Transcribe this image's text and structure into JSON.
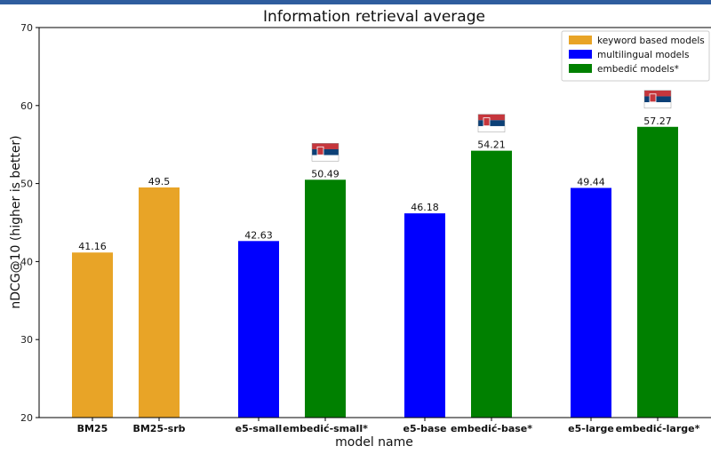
{
  "chart_data": {
    "type": "bar",
    "title": "Information retrieval average",
    "xlabel": "model name",
    "ylabel": "nDCG@10 (higher is better)",
    "ylim": [
      20,
      70
    ],
    "yticks": [
      20,
      30,
      40,
      50,
      60,
      70
    ],
    "grid": false,
    "legend_position": "top-right",
    "groups": [
      {
        "name": "keyword based models",
        "color": "#e8a427"
      },
      {
        "name": "multilingual models",
        "color": "#0000ff"
      },
      {
        "name": "embedić models*",
        "color": "#008000"
      }
    ],
    "bars": [
      {
        "category": "BM25",
        "value": 41.16,
        "label": "41.16",
        "group": 0,
        "flag": false
      },
      {
        "category": "BM25-srb",
        "value": 49.5,
        "label": "49.5",
        "group": 0,
        "flag": false
      },
      {
        "category": "e5-small",
        "value": 42.63,
        "label": "42.63",
        "group": 1,
        "flag": false
      },
      {
        "category": "embedić-small*",
        "value": 50.49,
        "label": "50.49",
        "group": 2,
        "flag": true
      },
      {
        "category": "e5-base",
        "value": 46.18,
        "label": "46.18",
        "group": 1,
        "flag": false
      },
      {
        "category": "embedić-base*",
        "value": 54.21,
        "label": "54.21",
        "group": 2,
        "flag": true
      },
      {
        "category": "e5-large",
        "value": 49.44,
        "label": "49.44",
        "group": 1,
        "flag": false
      },
      {
        "category": "embedić-large*",
        "value": 57.27,
        "label": "57.27",
        "group": 2,
        "flag": true
      }
    ],
    "flag_colors": [
      "#c6363c",
      "#0c4076",
      "#ffffff"
    ],
    "frame_color": "#2f5d9e"
  }
}
